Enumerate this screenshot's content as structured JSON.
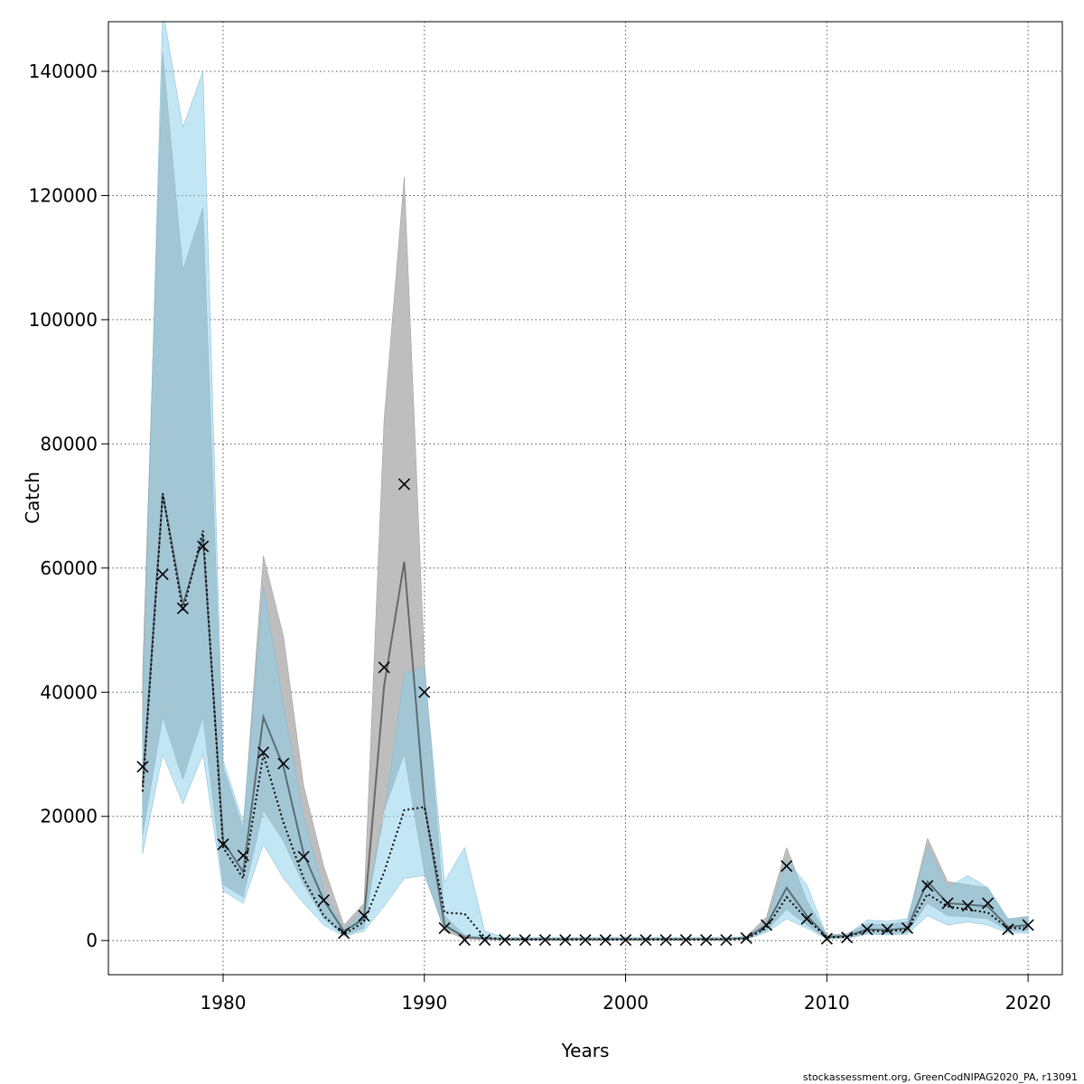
{
  "chart_data": {
    "type": "line",
    "title": "",
    "xlabel": "Years",
    "ylabel": "Catch",
    "footer": "stockassessment.org, GreenCodNIPAG2020_PA, r13091",
    "xlim": [
      1974.3,
      2021.7
    ],
    "ylim": [
      -5500,
      148000
    ],
    "x_ticks": [
      1980,
      1990,
      2000,
      2010,
      2020
    ],
    "y_ticks": [
      0,
      20000,
      40000,
      60000,
      80000,
      100000,
      120000,
      140000
    ],
    "grid": true,
    "legend": "none",
    "colors": {
      "model_band": "#bebebe",
      "model_line": "#000000",
      "alt_band": "#87ceeb",
      "alt_line": "#000000",
      "observed": "#000000"
    },
    "years": [
      1976,
      1977,
      1978,
      1979,
      1980,
      1981,
      1982,
      1983,
      1984,
      1985,
      1986,
      1987,
      1988,
      1989,
      1990,
      1991,
      1992,
      1993,
      1994,
      1995,
      1996,
      1997,
      1998,
      1999,
      2000,
      2001,
      2002,
      2003,
      2004,
      2005,
      2006,
      2007,
      2008,
      2009,
      2010,
      2011,
      2012,
      2013,
      2014,
      2015,
      2016,
      2017,
      2018,
      2019,
      2020
    ],
    "series": [
      {
        "kind": "estimate_solid",
        "values": [
          25000,
          72000,
          54000,
          65000,
          16000,
          11000,
          36000,
          28000,
          14000,
          6500,
          1500,
          3500,
          41000,
          61000,
          22000,
          2500,
          500,
          300,
          200,
          200,
          200,
          200,
          200,
          200,
          200,
          200,
          200,
          200,
          200,
          200,
          400,
          2500,
          8500,
          4000,
          600,
          700,
          1800,
          1700,
          2000,
          9500,
          6000,
          5800,
          5500,
          2200,
          2500
        ],
        "lower": [
          17000,
          36000,
          26000,
          36000,
          9000,
          7000,
          21000,
          16000,
          9000,
          3500,
          800,
          2000,
          21000,
          30000,
          11000,
          1500,
          300,
          200,
          100,
          100,
          100,
          100,
          100,
          100,
          100,
          100,
          100,
          100,
          100,
          100,
          250,
          1600,
          5000,
          2500,
          300,
          400,
          1200,
          1100,
          1300,
          6000,
          4000,
          3800,
          3500,
          1500,
          1600
        ],
        "upper": [
          43000,
          143000,
          108000,
          118000,
          28000,
          18000,
          62000,
          49000,
          25000,
          12000,
          2500,
          6000,
          84000,
          123000,
          45000,
          4000,
          900,
          500,
          400,
          400,
          400,
          400,
          400,
          400,
          400,
          400,
          400,
          400,
          400,
          400,
          700,
          3800,
          15000,
          6500,
          900,
          1100,
          2700,
          2600,
          3000,
          16500,
          9500,
          9000,
          8500,
          3500,
          3800
        ]
      },
      {
        "kind": "estimate_dotted",
        "values": [
          24000,
          72000,
          53000,
          66000,
          15000,
          10000,
          30000,
          19000,
          10000,
          4000,
          1000,
          3000,
          11000,
          21000,
          21500,
          4500,
          4300,
          500,
          200,
          200,
          200,
          200,
          200,
          200,
          200,
          200,
          200,
          200,
          200,
          200,
          300,
          2000,
          7000,
          3500,
          500,
          600,
          1600,
          1500,
          1800,
          7500,
          5500,
          5000,
          4500,
          2000,
          2000
        ],
        "lower": [
          14000,
          30000,
          22000,
          30000,
          8000,
          6000,
          15500,
          10000,
          6000,
          2500,
          700,
          1500,
          5500,
          10000,
          10500,
          2000,
          800,
          300,
          100,
          100,
          100,
          100,
          100,
          100,
          100,
          100,
          100,
          100,
          100,
          100,
          200,
          1300,
          3500,
          2000,
          250,
          350,
          1000,
          900,
          1000,
          4000,
          2500,
          3000,
          2500,
          1200,
          1200
        ],
        "upper": [
          36000,
          150000,
          131000,
          140000,
          29000,
          19000,
          57000,
          38000,
          20000,
          8000,
          1700,
          5000,
          20000,
          43000,
          44000,
          9500,
          15000,
          1500,
          500,
          500,
          500,
          500,
          500,
          500,
          500,
          500,
          500,
          500,
          500,
          500,
          600,
          3000,
          13000,
          9000,
          700,
          900,
          3300,
          3100,
          3500,
          15000,
          8500,
          10500,
          8500,
          3500,
          3900
        ]
      },
      {
        "kind": "observed",
        "values": [
          28000,
          59000,
          53500,
          63500,
          15500,
          13700,
          30300,
          28500,
          13500,
          6500,
          1200,
          4000,
          44000,
          73500,
          40000,
          2000,
          100,
          100,
          100,
          100,
          100,
          100,
          100,
          100,
          100,
          100,
          100,
          100,
          100,
          100,
          400,
          2500,
          12000,
          3500,
          300,
          500,
          1800,
          1800,
          2000,
          8800,
          6000,
          5600,
          6000,
          1800,
          2500
        ]
      }
    ]
  }
}
